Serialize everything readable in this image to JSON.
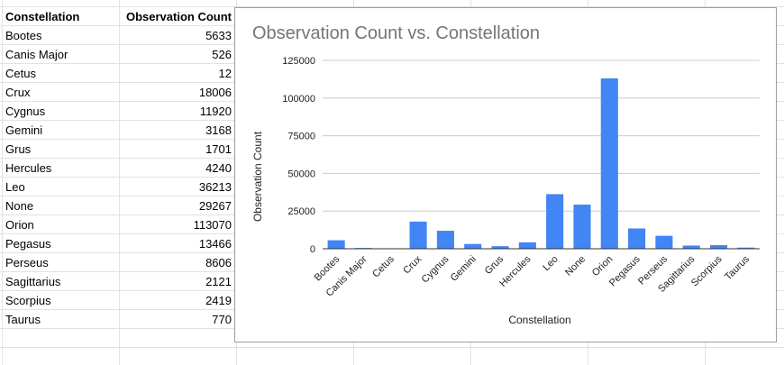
{
  "table": {
    "headers": [
      "Constellation",
      "Observation Count"
    ],
    "rows": [
      [
        "Bootes",
        "5633"
      ],
      [
        "Canis Major",
        "526"
      ],
      [
        "Cetus",
        "12"
      ],
      [
        "Crux",
        "18006"
      ],
      [
        "Cygnus",
        "11920"
      ],
      [
        "Gemini",
        "3168"
      ],
      [
        "Grus",
        "1701"
      ],
      [
        "Hercules",
        "4240"
      ],
      [
        "Leo",
        "36213"
      ],
      [
        "None",
        "29267"
      ],
      [
        "Orion",
        "113070"
      ],
      [
        "Pegasus",
        "13466"
      ],
      [
        "Perseus",
        "8606"
      ],
      [
        "Sagittarius",
        "2121"
      ],
      [
        "Scorpius",
        "2419"
      ],
      [
        "Taurus",
        "770"
      ]
    ]
  },
  "colors": {
    "bar": "#4285f4",
    "gridline": "#cccccc",
    "axis": "#333333",
    "title": "#757575"
  },
  "chart_data": {
    "type": "bar",
    "title": "Observation Count vs. Constellation",
    "xlabel": "Constellation",
    "ylabel": "Observation Count",
    "ylim": [
      0,
      125000
    ],
    "yticks": [
      "0",
      "25000",
      "50000",
      "75000",
      "100000",
      "125000"
    ],
    "grid": true,
    "legend": "none",
    "categories": [
      "Bootes",
      "Canis Major",
      "Cetus",
      "Crux",
      "Cygnus",
      "Gemini",
      "Grus",
      "Hercules",
      "Leo",
      "None",
      "Orion",
      "Pegasus",
      "Perseus",
      "Sagittarius",
      "Scorpius",
      "Taurus"
    ],
    "series": [
      {
        "values": [
          5633,
          526,
          12,
          18006,
          11920,
          3168,
          1701,
          4240,
          36213,
          29267,
          113070,
          13466,
          8606,
          2121,
          2419,
          770
        ]
      }
    ]
  }
}
